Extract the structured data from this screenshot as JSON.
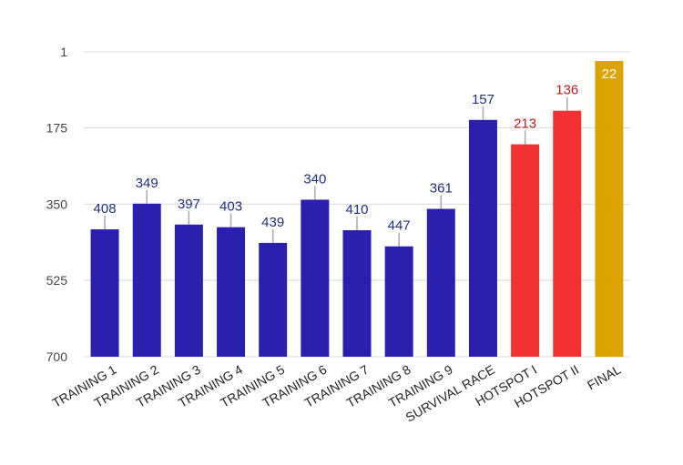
{
  "chart_data": {
    "type": "bar",
    "title": "",
    "xlabel": "",
    "ylabel": "",
    "y_axis": "reversed",
    "ylim": [
      700,
      1
    ],
    "yticks": [
      "1",
      "175",
      "350",
      "525",
      "700"
    ],
    "grid": true,
    "legend": "none",
    "categories": [
      "TRAINING 1",
      "TRAINING 2",
      "TRAINING 3",
      "TRAINING 4",
      "TRAINING 5",
      "TRAINING 6",
      "TRAINING 7",
      "TRAINING 8",
      "TRAINING 9",
      "SURVIVAL RACE",
      "HOTSPOT I",
      "HOTSPOT II",
      "FINAL"
    ],
    "values": [
      408,
      349,
      397,
      403,
      439,
      340,
      410,
      447,
      361,
      157,
      213,
      136,
      22
    ],
    "value_labels": [
      "408",
      "349",
      "397",
      "403",
      "439",
      "340",
      "410",
      "447",
      "361",
      "157",
      "213",
      "136",
      "22"
    ],
    "bar_colors": [
      "#2a1fae",
      "#2a1fae",
      "#2a1fae",
      "#2a1fae",
      "#2a1fae",
      "#2a1fae",
      "#2a1fae",
      "#2a1fae",
      "#2a1fae",
      "#2a1fae",
      "#f23232",
      "#f23232",
      "#dba300"
    ],
    "label_colors": [
      "#1f2f7a",
      "#1f2f7a",
      "#1f2f7a",
      "#1f2f7a",
      "#1f2f7a",
      "#1f2f7a",
      "#1f2f7a",
      "#1f2f7a",
      "#1f2f7a",
      "#1f2f7a",
      "#b01f1f",
      "#b01f1f",
      "#ffffff"
    ]
  }
}
